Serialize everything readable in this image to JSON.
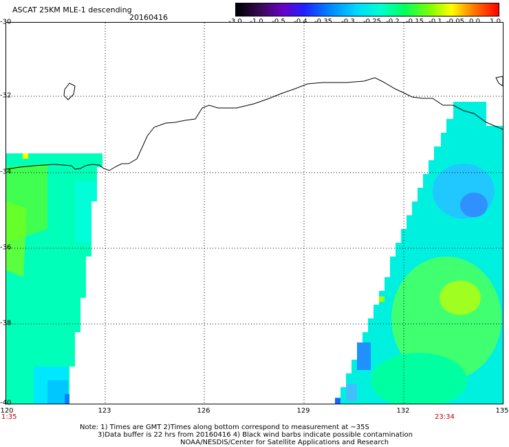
{
  "header": {
    "title": "ASCAT 25KM MLE-1 descending",
    "date": "20160416"
  },
  "colorbar": {
    "labels": [
      "-3.0",
      "-1.0",
      "-0.5",
      "-0.4",
      "-0.35",
      "-0.3",
      "-0.25",
      "-0.2",
      "-0.15",
      "-0.1",
      "-0.05",
      "0.0",
      "1.0"
    ]
  },
  "axes": {
    "lat_labels": [
      "-30",
      "-32",
      "-34",
      "-36",
      "-38",
      "-40"
    ],
    "lon_labels": [
      "120",
      "123",
      "126",
      "129",
      "132",
      "135"
    ]
  },
  "swaths": {
    "left_time": "1:35",
    "right_time": "23:34"
  },
  "notes": {
    "line1": "Note: 1) Times are GMT 2)Times along bottom correspond to measurement at ~35S",
    "line2": "3)Data buffer is 22 hrs from 20160416 4) Black wind barbs indicate possible contamination",
    "line3": "NOAA/NESDIS/Center for Satellite Applications and Research"
  }
}
